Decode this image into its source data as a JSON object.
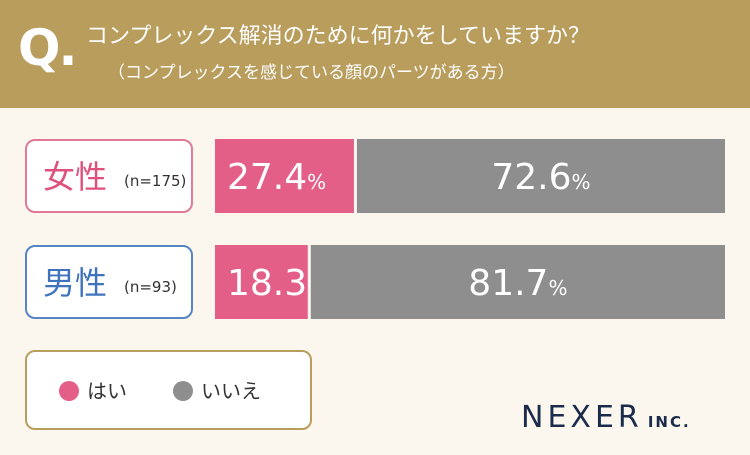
{
  "header": {
    "q_mark": "Q.",
    "question": "コンプレックス解消のために何かをしていますか？",
    "subtitle": "（コンプレックスを感じている顔のパーツがある方）"
  },
  "groups": [
    {
      "label": "女性",
      "n": "(n=175)"
    },
    {
      "label": "男性",
      "n": "(n=93)"
    }
  ],
  "legend": [
    {
      "label": "はい",
      "color": "#e35f87"
    },
    {
      "label": "いいえ",
      "color": "#8e8e8e"
    }
  ],
  "chart_data": {
    "type": "bar",
    "orientation": "horizontal-stacked-100",
    "categories": [
      "女性",
      "男性"
    ],
    "series": [
      {
        "name": "はい",
        "values": [
          27.4,
          18.3
        ],
        "color": "#e35f87"
      },
      {
        "name": "いいえ",
        "values": [
          72.6,
          81.7
        ],
        "color": "#8e8e8e"
      }
    ],
    "unit": "%",
    "xlim": [
      0,
      100
    ],
    "legend_position": "bottom-left"
  },
  "brand": {
    "name": "NEXER",
    "suffix": "INC."
  }
}
